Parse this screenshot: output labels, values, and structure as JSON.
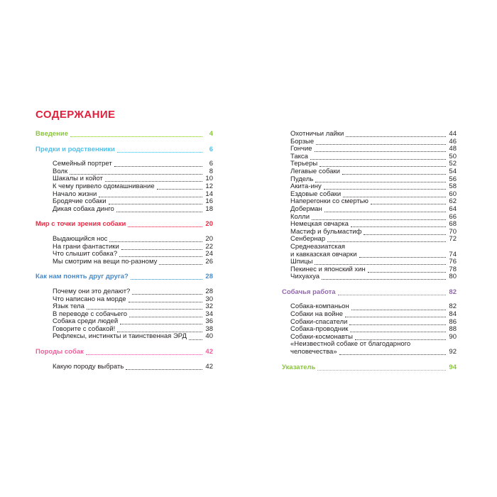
{
  "title": "СОДЕРЖАНИЕ",
  "colors": {
    "title": "#e0203c",
    "green": "#8cc63e",
    "cyan": "#54c0e8",
    "red": "#e62a44",
    "blue": "#4a8bc8",
    "pink": "#ee5f9b",
    "purple": "#9169ab",
    "text": "#231f20",
    "leader": "#414042"
  },
  "columns": [
    {
      "sections": [
        {
          "heading": "Введение",
          "page": "4",
          "color": "green",
          "items": []
        },
        {
          "heading": "Предки и родственники",
          "page": "6",
          "color": "cyan",
          "items": [
            {
              "label": "Семейный портрет",
              "page": "6"
            },
            {
              "label": "Волк",
              "page": "8"
            },
            {
              "label": "Шакалы и койот",
              "page": "10"
            },
            {
              "label": "К чему привело одомашнивание",
              "page": "12"
            },
            {
              "label": "Начало жизни",
              "page": "14"
            },
            {
              "label": "Бродячие собаки",
              "page": "16"
            },
            {
              "label": "Дикая собака динго",
              "page": "18"
            }
          ]
        },
        {
          "heading": "Мир с точки зрения собаки",
          "page": "20",
          "color": "red",
          "items": [
            {
              "label": "Выдающийся нос",
              "page": "20"
            },
            {
              "label": "На грани фантастики",
              "page": "22"
            },
            {
              "label": "Что слышит собака?",
              "page": "24"
            },
            {
              "label": "Мы смотрим на вещи по-разному",
              "page": "26"
            }
          ]
        },
        {
          "heading": "Как нам понять друг друга?",
          "page": "28",
          "color": "blue",
          "items": [
            {
              "label": "Почему они это делают?",
              "page": "28"
            },
            {
              "label": "Что написано на морде",
              "page": "30"
            },
            {
              "label": "Язык тела",
              "page": "32"
            },
            {
              "label": "В переводе с собачьего",
              "page": "34"
            },
            {
              "label": "Собака среди людей",
              "page": "36"
            },
            {
              "label": "Говорите с собакой!",
              "page": "38"
            },
            {
              "label": "Рефлексы, инстинкты и таинственная ЭРД",
              "page": "40"
            }
          ]
        },
        {
          "heading": "Породы собак",
          "page": "42",
          "color": "pink",
          "items": [
            {
              "label": "Какую породу выбрать",
              "page": "42"
            }
          ]
        }
      ]
    },
    {
      "sections": [
        {
          "heading": "",
          "page": "",
          "color": "",
          "items": [
            {
              "label": "Охотничьи лайки",
              "page": "44"
            },
            {
              "label": "Борзые",
              "page": "46"
            },
            {
              "label": "Гончие",
              "page": "48"
            },
            {
              "label": "Такса",
              "page": "50"
            },
            {
              "label": "Терьеры",
              "page": "52"
            },
            {
              "label": "Легавые собаки",
              "page": "54"
            },
            {
              "label": "Пудель",
              "page": "56"
            },
            {
              "label": "Акита-ину",
              "page": "58"
            },
            {
              "label": "Ездовые собаки",
              "page": "60"
            },
            {
              "label": "Наперегонки со смертью",
              "page": "62"
            },
            {
              "label": "Доберман",
              "page": "64"
            },
            {
              "label": "Колли",
              "page": "66"
            },
            {
              "label": "Немецкая овчарка",
              "page": "68"
            },
            {
              "label": "Мастиф и бульмастиф",
              "page": "70"
            },
            {
              "label": "Сенбернар",
              "page": "72"
            },
            {
              "label": "Среднеазиатская",
              "label2": "и кавказская овчарки",
              "page": "74"
            },
            {
              "label": "Шпицы",
              "page": "76"
            },
            {
              "label": "Пекинес и японский хин",
              "page": "78"
            },
            {
              "label": "Чихуахуа",
              "page": "80"
            }
          ]
        },
        {
          "heading": "Собачья работа",
          "page": "82",
          "color": "purple",
          "items": [
            {
              "label": "Собака-компаньон",
              "page": "82"
            },
            {
              "label": "Собаки на войне",
              "page": "84"
            },
            {
              "label": "Собаки-спасатели",
              "page": "86"
            },
            {
              "label": "Собака-проводник",
              "page": "88"
            },
            {
              "label": "Собаки-космонавты",
              "page": "90"
            },
            {
              "label": "«Неизвестной собаке от благодарного",
              "label2": "человечества»",
              "page": "92"
            }
          ]
        },
        {
          "heading": "Указатель",
          "page": "94",
          "color": "green",
          "items": []
        }
      ]
    }
  ]
}
